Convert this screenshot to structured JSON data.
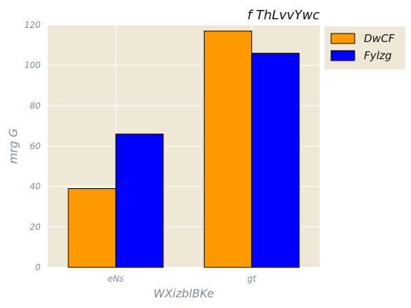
{
  "chart_data": {
    "type": "bar",
    "title": "f ThLvvYwc",
    "xlabel": "WXizblBKe",
    "ylabel": "mrg G",
    "categories": [
      "eNs",
      "gt"
    ],
    "series": [
      {
        "name": "DwCF",
        "values": [
          39,
          117
        ]
      },
      {
        "name": "Fylzg",
        "values": [
          66,
          106
        ]
      }
    ],
    "ylim": [
      0,
      120
    ],
    "yticks": [
      0,
      20,
      40,
      60,
      80,
      100,
      120
    ],
    "grid": true,
    "legend": "outside-top-right"
  },
  "colors": {
    "plot_background": "#efe8d6",
    "grid": "#ffffff",
    "series": [
      "#ff9900",
      "#0000ff"
    ],
    "bar_edge": "#000000"
  }
}
